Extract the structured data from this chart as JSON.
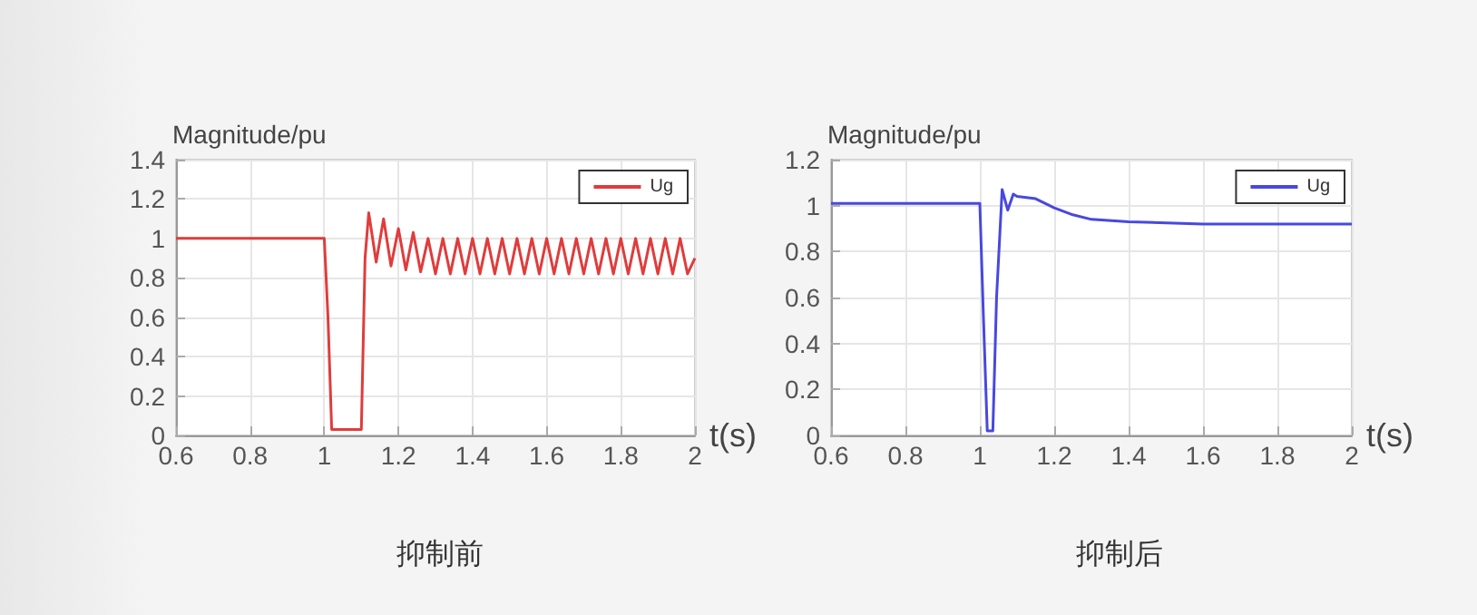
{
  "chart_data": [
    {
      "type": "line",
      "title": "抑制前",
      "xlabel": "t(s)",
      "ylabel": "Magnitude/pu",
      "xlim": [
        0.6,
        2
      ],
      "xticks": [
        0.6,
        0.8,
        1,
        1.2,
        1.4,
        1.6,
        1.8,
        2
      ],
      "ylim": [
        0,
        1.4
      ],
      "yticks": [
        0,
        0.2,
        0.4,
        0.6,
        0.8,
        1,
        1.2,
        1.4
      ],
      "grid": true,
      "legend": "top right",
      "x": [
        0.6,
        1.0,
        1.01,
        1.02,
        1.1,
        1.11,
        1.12,
        1.14,
        1.16,
        1.18,
        1.2,
        1.22,
        1.24,
        1.26,
        1.28,
        1.3,
        1.32,
        1.34,
        1.36,
        1.38,
        1.4,
        1.42,
        1.44,
        1.46,
        1.48,
        1.5,
        1.52,
        1.54,
        1.56,
        1.58,
        1.6,
        1.62,
        1.64,
        1.66,
        1.68,
        1.7,
        1.72,
        1.74,
        1.76,
        1.78,
        1.8,
        1.82,
        1.84,
        1.86,
        1.88,
        1.9,
        1.92,
        1.94,
        1.96,
        1.98,
        2.0
      ],
      "series": [
        {
          "name": "Ug",
          "color": "#e03c3c",
          "values": [
            1,
            1,
            0.6,
            0.03,
            0.03,
            0.9,
            1.13,
            0.88,
            1.1,
            0.86,
            1.05,
            0.84,
            1.03,
            0.83,
            1.0,
            0.82,
            1.0,
            0.82,
            1.0,
            0.82,
            1.0,
            0.82,
            1.0,
            0.82,
            1.0,
            0.82,
            1.0,
            0.82,
            1.0,
            0.82,
            1.0,
            0.82,
            1.0,
            0.82,
            1.0,
            0.82,
            1.0,
            0.82,
            1.0,
            0.82,
            1.0,
            0.82,
            1.0,
            0.82,
            1.0,
            0.82,
            1.0,
            0.82,
            1.0,
            0.82,
            0.9
          ]
        }
      ]
    },
    {
      "type": "line",
      "title": "抑制后",
      "xlabel": "t(s)",
      "ylabel": "Magnitude/pu",
      "xlim": [
        0.6,
        2
      ],
      "xticks": [
        0.6,
        0.8,
        1,
        1.2,
        1.4,
        1.6,
        1.8,
        2
      ],
      "ylim": [
        0,
        1.2
      ],
      "yticks": [
        0,
        0.2,
        0.4,
        0.6,
        0.8,
        1,
        1.2
      ],
      "grid": true,
      "legend": "top right",
      "x": [
        0.6,
        1.0,
        1.01,
        1.02,
        1.035,
        1.045,
        1.06,
        1.075,
        1.09,
        1.1,
        1.15,
        1.2,
        1.25,
        1.3,
        1.4,
        1.6,
        2.0
      ],
      "series": [
        {
          "name": "Ug",
          "color": "#4848e0",
          "values": [
            1.01,
            1.01,
            0.5,
            0.02,
            0.02,
            0.6,
            1.07,
            0.98,
            1.05,
            1.04,
            1.03,
            0.99,
            0.96,
            0.94,
            0.93,
            0.92,
            0.92
          ]
        }
      ]
    }
  ]
}
